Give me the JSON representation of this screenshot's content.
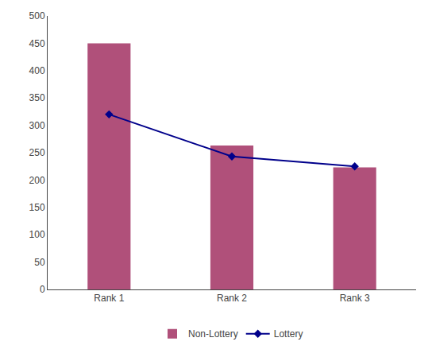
{
  "chart_data": {
    "type": "bar",
    "categories": [
      "Rank 1",
      "Rank 2",
      "Rank 3"
    ],
    "series": [
      {
        "name": "Non-Lottery",
        "type": "bar",
        "color": "#b0507a",
        "values": [
          450,
          263,
          223
        ]
      },
      {
        "name": "Lottery",
        "type": "line",
        "color": "#00008b",
        "marker": "diamond",
        "line_style": "solid",
        "values": [
          320,
          243,
          225
        ]
      }
    ],
    "ylim": [
      0,
      500
    ],
    "yticks": [
      0,
      50,
      100,
      150,
      200,
      250,
      300,
      350,
      400,
      450,
      500
    ],
    "grid": false,
    "legend": "bottom"
  }
}
